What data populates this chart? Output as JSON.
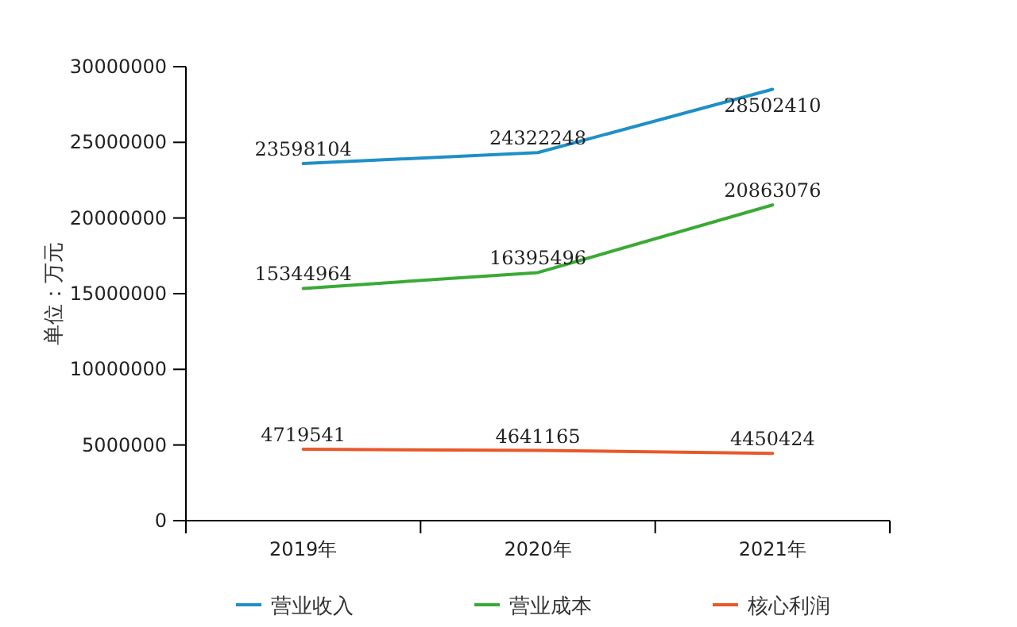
{
  "chart_data": {
    "type": "line",
    "ylabel": "单位：万元",
    "categories": [
      "2019年",
      "2020年",
      "2021年"
    ],
    "series": [
      {
        "name": "营业收入",
        "color": "#1f8fc8",
        "values": [
          23598104,
          24322248,
          28502410
        ]
      },
      {
        "name": "营业成本",
        "color": "#3aaa35",
        "values": [
          15344964,
          16395496,
          20863076
        ]
      },
      {
        "name": "核心利润",
        "color": "#e8582a",
        "values": [
          4719541,
          4641165,
          4450424
        ]
      }
    ],
    "ylim": [
      0,
      30000000
    ],
    "yticks": [
      0,
      5000000,
      10000000,
      15000000,
      20000000,
      25000000,
      30000000
    ],
    "data_labels": true,
    "legend": "bottom",
    "marker": "none",
    "line_style": "solid"
  }
}
